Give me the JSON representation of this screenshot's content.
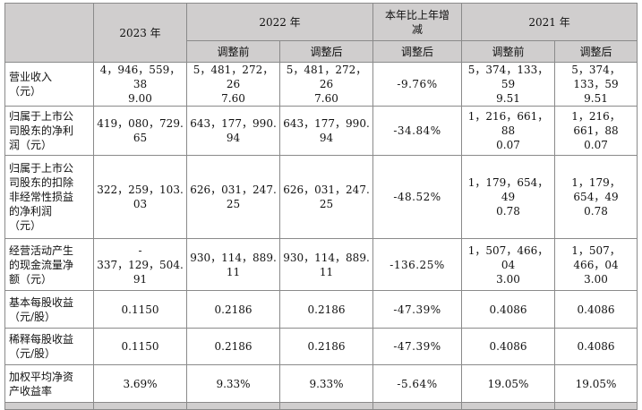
{
  "header": {
    "corner": "",
    "year_2023": "2023 年",
    "year_2022": "2022 年",
    "change": "本年比上年增\n减",
    "year_2021": "2021 年",
    "before": "调整前",
    "after": "调整后",
    "change_after": "调整后"
  },
  "rows": [
    {
      "label": "营业收入\n（元）",
      "v2023": "4，946，559，38\n9.00",
      "v2022_before": "5，481，272，26\n7.60",
      "v2022_after": "5，481，272，26\n7.60",
      "change": "-9.76%",
      "v2021_before": "5，374，133，59\n9.51",
      "v2021_after": "5，374，133，59\n9.51"
    },
    {
      "label": "归属于上市公\n司股东的净利\n润（元）",
      "v2023": "419，080，729.\n65",
      "v2022_before": "643，177，990.\n94",
      "v2022_after": "643，177，990.\n94",
      "change": "-34.84%",
      "v2021_before": "1，216，661，88\n0.07",
      "v2021_after": "1，216，661，88\n0.07"
    },
    {
      "label": "归属于上市公\n司股东的扣除\n非经常性损益\n的净利润\n（元）",
      "v2023": "322，259，103.\n03",
      "v2022_before": "626，031，247.\n25",
      "v2022_after": "626，031，247.\n25",
      "change": "-48.52%",
      "v2021_before": "1，179，654，49\n0.78",
      "v2021_after": "1，179，654，49\n0.78"
    },
    {
      "label": "经营活动产生\n的现金流量净\n额（元）",
      "v2023": "-\n337，129，504.\n91",
      "v2022_before": "930，114，889.\n11",
      "v2022_after": "930，114，889.\n11",
      "change": "-136.25%",
      "v2021_before": "1，507，466，04\n3.00",
      "v2021_after": "1，507，466，04\n3.00"
    },
    {
      "label": "基本每股收益\n（元/股）",
      "v2023": "0.1150",
      "v2022_before": "0.2186",
      "v2022_after": "0.2186",
      "change": "-47.39%",
      "v2021_before": "0.4086",
      "v2021_after": "0.4086"
    },
    {
      "label": "稀释每股收益\n（元/股）",
      "v2023": "0.1150",
      "v2022_before": "0.2186",
      "v2022_after": "0.2186",
      "change": "-47.39%",
      "v2021_before": "0.4086",
      "v2021_after": "0.4086"
    },
    {
      "label": "加权平均净资\n产收益率",
      "v2023": "3.69%",
      "v2022_before": "9.33%",
      "v2022_after": "9.33%",
      "change": "-5.64%",
      "v2021_before": "19.05%",
      "v2021_after": "19.05%"
    }
  ],
  "colors": {
    "header_bg": "#d0cece",
    "border": "#8a8a8a",
    "text": "#111111"
  }
}
